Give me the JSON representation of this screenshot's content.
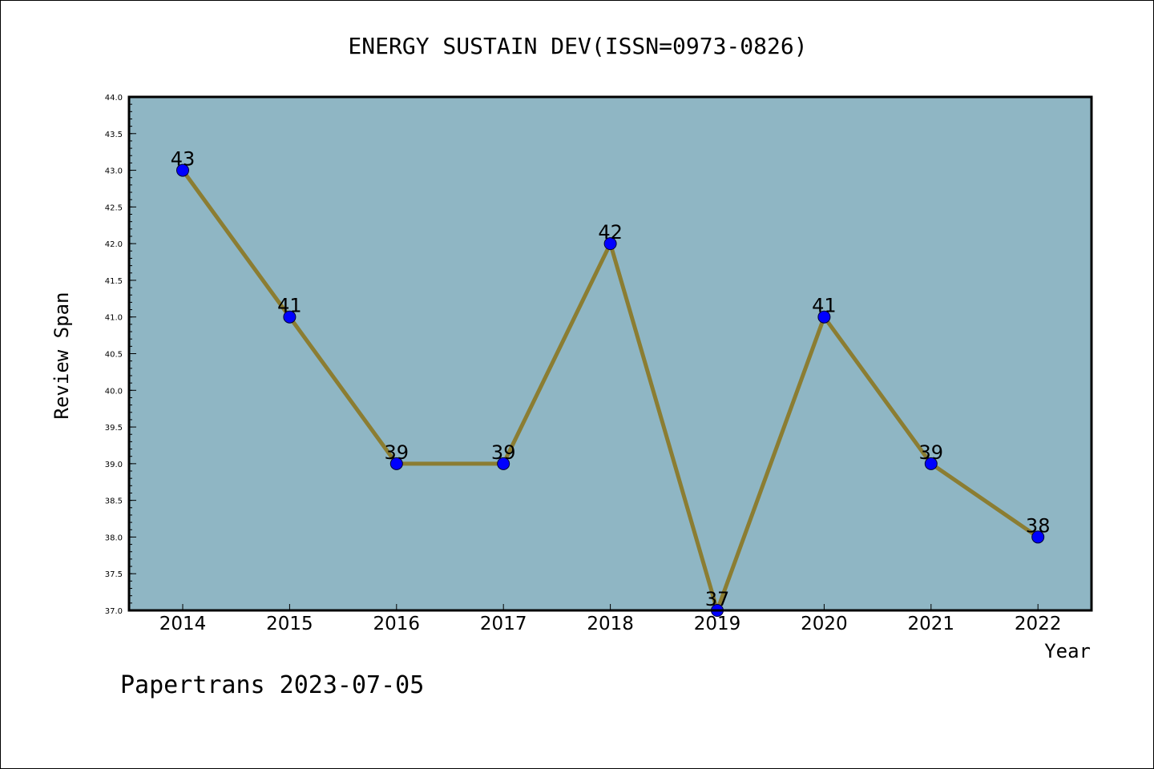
{
  "chart_data": {
    "type": "line",
    "title": "ENERGY SUSTAIN DEV(ISSN=0973-0826)",
    "xlabel": "Year",
    "ylabel": "Review Span",
    "categories": [
      "2014",
      "2015",
      "2016",
      "2017",
      "2018",
      "2019",
      "2020",
      "2021",
      "2022"
    ],
    "values": [
      43,
      41,
      39,
      39,
      42,
      37,
      41,
      39,
      38
    ],
    "data_labels": [
      "43",
      "41",
      "39",
      "39",
      "42",
      "37",
      "41",
      "39",
      "38"
    ],
    "ylim": [
      37.0,
      44.0
    ],
    "y_ticks": [
      "37.0",
      "37.5",
      "38.0",
      "38.5",
      "39.0",
      "39.5",
      "40.0",
      "40.5",
      "41.0",
      "41.5",
      "42.0",
      "42.5",
      "43.0",
      "43.5",
      "44.0"
    ],
    "grid": false,
    "plot_background": "#8fb6c4",
    "line_color": "#8b7d32",
    "marker_color": "#0000ff"
  },
  "footer": {
    "text": "Papertrans 2023-07-05"
  }
}
